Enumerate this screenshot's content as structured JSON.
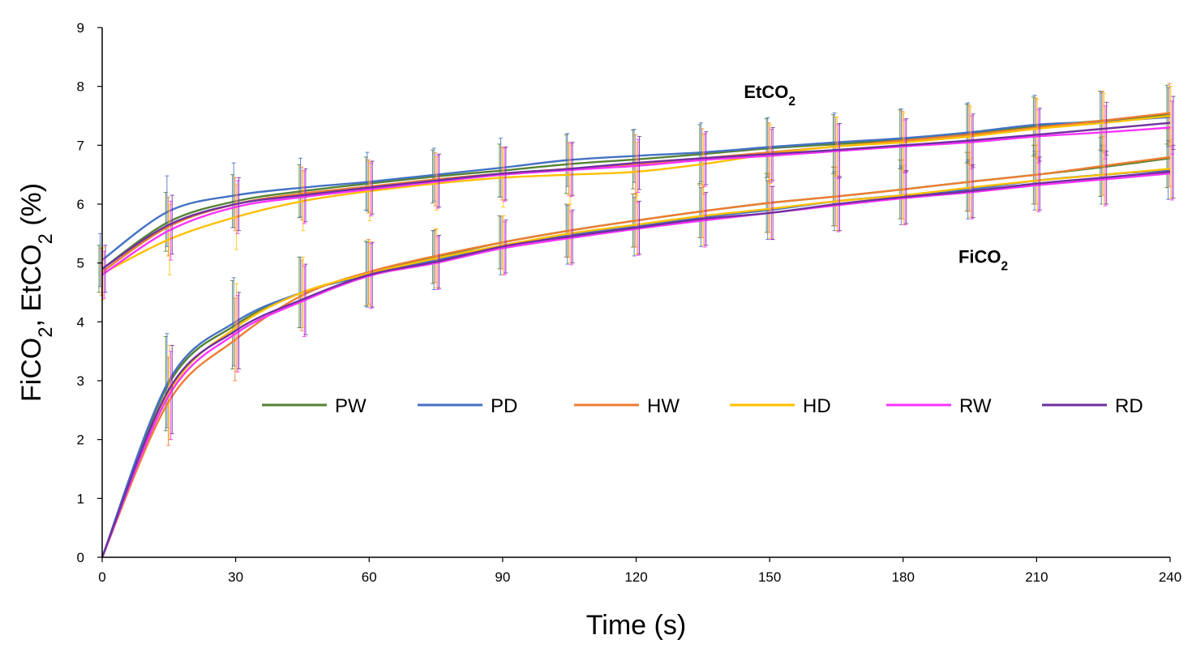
{
  "chart_data": {
    "type": "line",
    "title": "",
    "xlabel": "Time (s)",
    "ylabel": {
      "parts": [
        [
          "FiCO",
          ""
        ],
        [
          "2",
          "sub"
        ],
        [
          ", EtCO",
          ""
        ],
        [
          "2",
          "sub"
        ],
        [
          " (%)",
          ""
        ]
      ]
    },
    "xlim": [
      0,
      240
    ],
    "ylim": [
      0,
      9
    ],
    "xticks": [
      0,
      30,
      60,
      90,
      120,
      150,
      180,
      210,
      240
    ],
    "yticks": [
      0,
      1,
      2,
      3,
      4,
      5,
      6,
      7,
      8,
      9
    ],
    "grid": false,
    "legend_position": "center",
    "annotations": [
      {
        "id": "etco2",
        "parts": [
          [
            "EtCO",
            ""
          ],
          [
            "2",
            "sub"
          ]
        ],
        "x": 150,
        "y": 7.8
      },
      {
        "id": "fico2",
        "parts": [
          [
            "FiCO",
            ""
          ],
          [
            "2",
            "sub"
          ]
        ],
        "x": 198,
        "y": 5.0
      }
    ],
    "x": [
      0,
      15,
      30,
      45,
      60,
      75,
      90,
      105,
      120,
      135,
      150,
      165,
      180,
      195,
      210,
      225,
      240
    ],
    "series": [
      {
        "name": "PW",
        "color": "#548235",
        "EtCO2": [
          4.9,
          5.7,
          6.05,
          6.22,
          6.35,
          6.47,
          6.57,
          6.68,
          6.76,
          6.85,
          6.95,
          7.02,
          7.1,
          7.2,
          7.32,
          7.42,
          7.52
        ],
        "FiCO2": [
          0,
          2.95,
          3.95,
          4.5,
          4.82,
          5.1,
          5.35,
          5.55,
          5.72,
          5.88,
          6.02,
          6.13,
          6.25,
          6.38,
          6.5,
          6.63,
          6.78
        ],
        "EtCO2_err": [
          0.4,
          0.5,
          0.45,
          0.45,
          0.45,
          0.45,
          0.45,
          0.5,
          0.5,
          0.5,
          0.5,
          0.5,
          0.5,
          0.5,
          0.5,
          0.5,
          0.5
        ],
        "FiCO2_err": [
          0,
          0.8,
          0.75,
          0.6,
          0.55,
          0.45,
          0.45,
          0.45,
          0.45,
          0.45,
          0.5,
          0.5,
          0.5,
          0.5,
          0.5,
          0.5,
          0.5
        ]
      },
      {
        "name": "PD",
        "color": "#4472C4",
        "EtCO2": [
          5.05,
          5.88,
          6.15,
          6.28,
          6.38,
          6.5,
          6.62,
          6.75,
          6.82,
          6.88,
          6.97,
          7.05,
          7.12,
          7.22,
          7.35,
          7.4,
          7.48
        ],
        "FiCO2": [
          0,
          3.0,
          4.0,
          4.5,
          4.8,
          5.05,
          5.3,
          5.48,
          5.62,
          5.78,
          5.9,
          6.05,
          6.15,
          6.25,
          6.4,
          6.5,
          6.58
        ],
        "EtCO2_err": [
          0.45,
          0.6,
          0.55,
          0.5,
          0.5,
          0.45,
          0.5,
          0.45,
          0.45,
          0.5,
          0.5,
          0.5,
          0.5,
          0.5,
          0.5,
          0.5,
          0.5
        ],
        "FiCO2_err": [
          0,
          0.8,
          0.75,
          0.6,
          0.55,
          0.5,
          0.5,
          0.5,
          0.5,
          0.5,
          0.5,
          0.5,
          0.5,
          0.5,
          0.5,
          0.5,
          0.5
        ]
      },
      {
        "name": "HW",
        "color": "#ED7D31",
        "EtCO2": [
          4.85,
          5.62,
          6.0,
          6.18,
          6.3,
          6.42,
          6.52,
          6.6,
          6.68,
          6.78,
          6.88,
          6.98,
          7.08,
          7.18,
          7.3,
          7.42,
          7.55
        ],
        "FiCO2": [
          0,
          2.65,
          3.7,
          4.45,
          4.85,
          5.12,
          5.35,
          5.55,
          5.72,
          5.88,
          6.02,
          6.13,
          6.25,
          6.38,
          6.5,
          6.65,
          6.8
        ],
        "EtCO2_err": [
          0.4,
          0.5,
          0.45,
          0.45,
          0.45,
          0.45,
          0.45,
          0.45,
          0.5,
          0.5,
          0.5,
          0.5,
          0.5,
          0.5,
          0.5,
          0.5,
          0.5
        ],
        "FiCO2_err": [
          0,
          0.75,
          0.7,
          0.6,
          0.55,
          0.45,
          0.45,
          0.45,
          0.45,
          0.45,
          0.5,
          0.5,
          0.5,
          0.5,
          0.5,
          0.5,
          0.5
        ]
      },
      {
        "name": "HD",
        "color": "#FFC000",
        "EtCO2": [
          4.82,
          5.4,
          5.78,
          6.05,
          6.22,
          6.35,
          6.45,
          6.5,
          6.55,
          6.68,
          6.85,
          6.98,
          7.05,
          7.15,
          7.28,
          7.38,
          7.5
        ],
        "FiCO2": [
          0,
          2.8,
          3.9,
          4.5,
          4.82,
          5.08,
          5.3,
          5.5,
          5.65,
          5.8,
          5.92,
          6.05,
          6.15,
          6.28,
          6.4,
          6.5,
          6.6
        ],
        "EtCO2_err": [
          0.45,
          0.6,
          0.55,
          0.5,
          0.5,
          0.45,
          0.5,
          0.5,
          0.5,
          0.5,
          0.5,
          0.5,
          0.5,
          0.5,
          0.5,
          0.5,
          0.5
        ],
        "FiCO2_err": [
          0,
          0.8,
          0.75,
          0.6,
          0.55,
          0.5,
          0.5,
          0.5,
          0.5,
          0.5,
          0.5,
          0.5,
          0.5,
          0.5,
          0.5,
          0.5,
          0.5
        ]
      },
      {
        "name": "RW",
        "color": "#FF33FF",
        "EtCO2": [
          4.8,
          5.55,
          5.95,
          6.12,
          6.25,
          6.38,
          6.5,
          6.58,
          6.65,
          6.75,
          6.82,
          6.9,
          6.98,
          7.05,
          7.15,
          7.22,
          7.3
        ],
        "FiCO2": [
          0,
          2.75,
          3.8,
          4.35,
          4.78,
          5.0,
          5.25,
          5.42,
          5.58,
          5.72,
          5.85,
          5.98,
          6.1,
          6.2,
          6.32,
          6.42,
          6.52
        ],
        "EtCO2_err": [
          0.4,
          0.5,
          0.45,
          0.45,
          0.45,
          0.45,
          0.45,
          0.45,
          0.45,
          0.45,
          0.45,
          0.45,
          0.45,
          0.45,
          0.45,
          0.45,
          0.45
        ],
        "FiCO2_err": [
          0,
          0.75,
          0.65,
          0.6,
          0.55,
          0.45,
          0.45,
          0.45,
          0.45,
          0.45,
          0.45,
          0.45,
          0.45,
          0.45,
          0.45,
          0.45,
          0.45
        ]
      },
      {
        "name": "RD",
        "color": "#7030A0",
        "EtCO2": [
          4.9,
          5.65,
          6.0,
          6.15,
          6.28,
          6.4,
          6.52,
          6.6,
          6.7,
          6.78,
          6.85,
          6.92,
          7.0,
          7.08,
          7.18,
          7.28,
          7.38
        ],
        "FiCO2": [
          0,
          2.85,
          3.85,
          4.38,
          4.8,
          5.02,
          5.28,
          5.45,
          5.6,
          5.75,
          5.85,
          6.0,
          6.12,
          6.22,
          6.35,
          6.45,
          6.55
        ],
        "EtCO2_err": [
          0.4,
          0.5,
          0.45,
          0.45,
          0.45,
          0.45,
          0.45,
          0.45,
          0.45,
          0.45,
          0.45,
          0.45,
          0.45,
          0.45,
          0.45,
          0.45,
          0.45
        ],
        "FiCO2_err": [
          0,
          0.75,
          0.65,
          0.6,
          0.55,
          0.45,
          0.45,
          0.45,
          0.45,
          0.45,
          0.45,
          0.45,
          0.45,
          0.45,
          0.45,
          0.45,
          0.45
        ]
      }
    ]
  }
}
